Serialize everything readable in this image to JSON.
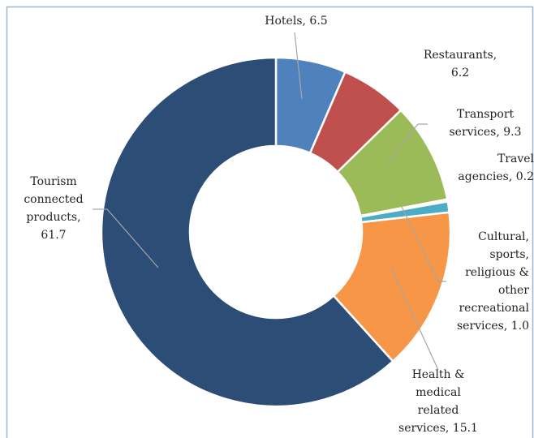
{
  "chart_data": {
    "type": "donut",
    "categories": [
      "Hotels",
      "Restaurants",
      "Transport services",
      "Travel agencies",
      "Cultural, sports, religious & other recreational services",
      "Health & medical related services",
      "Tourism connected products"
    ],
    "values": [
      6.5,
      6.2,
      9.3,
      0.2,
      1.0,
      15.1,
      61.7
    ],
    "value_labels": [
      [
        "Hotels, 6.5"
      ],
      [
        "Restaurants,",
        "6.2"
      ],
      [
        "Transport",
        "services, 9.3"
      ],
      [
        "Travel",
        "agencies, 0.2"
      ],
      [
        "Cultural,",
        "sports,",
        "religious &",
        "other",
        "recreational",
        "services, 1.0"
      ],
      [
        "Health &",
        "medical",
        "related",
        "services, 15.1"
      ],
      [
        "Tourism",
        "connected",
        "products,",
        "61.7"
      ]
    ],
    "colors": [
      "#4f81bd",
      "#c0504d",
      "#9bbb59",
      "#8064a2",
      "#4bacc6",
      "#f79646",
      "#2c4d75"
    ]
  }
}
